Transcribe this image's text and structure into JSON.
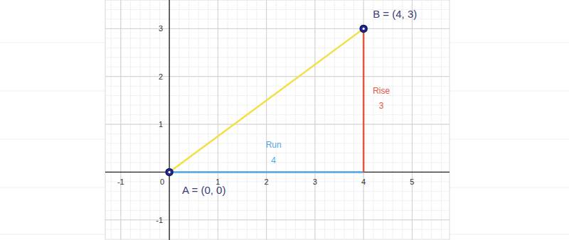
{
  "chart_data": {
    "type": "scatter",
    "xlim": [
      -1.32,
      5.77
    ],
    "ylim": [
      -1.42,
      3.6
    ],
    "xticks": [
      -1,
      0,
      1,
      2,
      3,
      4,
      5
    ],
    "yticks": [
      -1,
      1,
      2,
      3
    ],
    "grid": true,
    "points": [
      {
        "label": "A = (0, 0)",
        "x": 0,
        "y": 0,
        "color": "#23288a"
      },
      {
        "label": "B = (4, 3)",
        "x": 4,
        "y": 3,
        "color": "#23288a"
      }
    ],
    "segments": [
      {
        "x": [
          0,
          4
        ],
        "y": [
          0,
          3
        ],
        "color": "#f2e04a"
      },
      {
        "x": [
          0,
          4
        ],
        "y": [
          0,
          0
        ],
        "color": "#55a7e3",
        "label": "Run",
        "value": 4
      },
      {
        "x": [
          4,
          4
        ],
        "y": [
          0,
          3
        ],
        "color": "#e4563f",
        "label": "Rise",
        "value": 3
      }
    ]
  }
}
